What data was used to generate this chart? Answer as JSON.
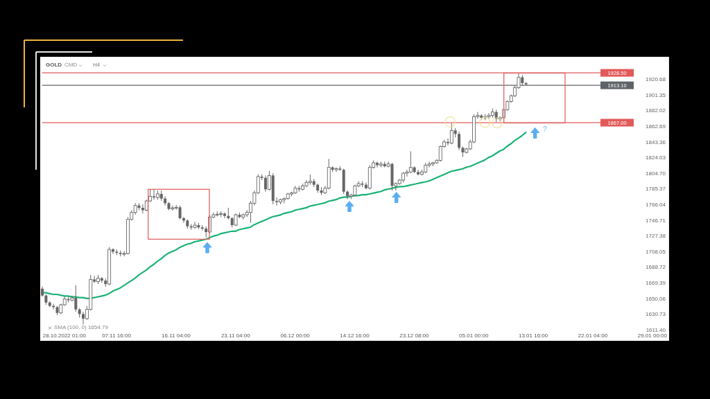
{
  "chart_data": {
    "type": "candlestick",
    "title": "GOLD",
    "annotations": [
      "CMD",
      "H4",
      "SMA (100, 0) 1654.79",
      "?"
    ],
    "categories": [
      null,
      null,
      null,
      null,
      null,
      null,
      "28.10.2022 01:00",
      null,
      null,
      null,
      null,
      null,
      null,
      null,
      null,
      null,
      null,
      null,
      null,
      null,
      "07.11 16:00",
      null,
      null,
      null,
      null,
      null,
      null,
      null,
      null,
      null,
      null,
      null,
      null,
      null,
      null,
      null,
      "16.11 04:00",
      null,
      null,
      null,
      null,
      null,
      null,
      null,
      null,
      null,
      null,
      null,
      null,
      null,
      null,
      null,
      "23.11 04:00",
      null,
      null,
      null,
      null,
      null,
      null,
      null,
      null,
      null,
      null,
      null,
      null,
      null,
      null,
      null,
      "06.12 00:00",
      null,
      null,
      null,
      null,
      null,
      null,
      null,
      null,
      null,
      null,
      null,
      null,
      null,
      null,
      null,
      "14.12 16:00",
      null,
      null,
      null,
      null,
      null,
      null,
      null,
      null,
      null,
      null,
      null,
      null,
      null,
      null,
      null,
      "23.12 08:00",
      null,
      null,
      null,
      null,
      null,
      null,
      null,
      null,
      null,
      null,
      null,
      null,
      null,
      null,
      null,
      "05.01 00:00",
      null,
      null,
      null,
      null,
      null,
      null,
      null,
      null,
      null,
      null,
      null,
      null,
      null,
      null,
      null,
      "13.01 16:00",
      null,
      null,
      null,
      null,
      null,
      null,
      null,
      null,
      null,
      null,
      null,
      null,
      null,
      null,
      null,
      "22.01 04:00",
      null,
      null,
      null,
      null,
      null,
      null,
      null,
      null,
      null,
      null,
      null,
      null,
      null,
      null,
      null,
      "29.01 00:00",
      null,
      null,
      null,
      null
    ],
    "ohlc": [
      [
        1662.1,
        1665.0,
        1652.2,
        1653.6
      ],
      [
        1653.6,
        1655.0,
        1642.2,
        1645.0
      ],
      [
        1645.0,
        1646.5,
        1639.3,
        1640.8
      ],
      [
        1640.8,
        1643.6,
        1636.5,
        1639.3
      ],
      [
        1639.3,
        1640.8,
        1629.4,
        1632.2
      ],
      [
        1632.2,
        1643.6,
        1630.8,
        1642.2
      ],
      [
        1642.2,
        1652.2,
        1640.8,
        1649.3
      ],
      [
        1649.3,
        1652.2,
        1645.0,
        1647.9
      ],
      [
        1647.9,
        1653.6,
        1646.5,
        1650.7
      ],
      [
        1650.7,
        1666.4,
        1633.6,
        1636.5
      ],
      [
        1636.5,
        1637.9,
        1626.5,
        1630.8
      ],
      [
        1630.8,
        1633.6,
        1618.0,
        1625.1
      ],
      [
        1625.1,
        1640.8,
        1623.7,
        1636.5
      ],
      [
        1636.5,
        1679.2,
        1635.1,
        1673.5
      ],
      [
        1673.5,
        1677.8,
        1669.3,
        1670.7
      ],
      [
        1670.7,
        1679.2,
        1667.8,
        1675.0
      ],
      [
        1675.0,
        1676.4,
        1669.3,
        1672.1
      ],
      [
        1672.1,
        1675.0,
        1664.4,
        1667.8
      ],
      [
        1667.8,
        1713.4,
        1666.4,
        1710.6
      ],
      [
        1710.6,
        1712.0,
        1704.9,
        1707.7
      ],
      [
        1707.7,
        1710.6,
        1703.5,
        1706.3
      ],
      [
        1706.3,
        1709.2,
        1702.0,
        1704.9
      ],
      [
        1704.9,
        1708.3,
        1702.0,
        1705.5
      ],
      [
        1705.5,
        1750.5,
        1704.3,
        1747.6
      ],
      [
        1747.6,
        1759.0,
        1746.2,
        1756.2
      ],
      [
        1756.2,
        1767.6,
        1753.3,
        1764.7
      ],
      [
        1764.7,
        1767.6,
        1759.0,
        1761.9
      ],
      [
        1761.9,
        1766.2,
        1754.8,
        1759.0
      ],
      [
        1759.0,
        1771.9,
        1757.6,
        1770.4
      ],
      [
        1770.4,
        1784.1,
        1769.0,
        1776.1
      ],
      [
        1776.1,
        1784.1,
        1771.9,
        1774.7
      ],
      [
        1774.7,
        1783.3,
        1771.9,
        1779.0
      ],
      [
        1779.0,
        1783.3,
        1770.4,
        1773.3
      ],
      [
        1773.3,
        1776.1,
        1764.7,
        1767.6
      ],
      [
        1767.6,
        1769.0,
        1759.0,
        1760.5
      ],
      [
        1760.5,
        1764.7,
        1758.5,
        1761.9
      ],
      [
        1761.9,
        1765.3,
        1759.6,
        1762.5
      ],
      [
        1762.5,
        1764.7,
        1747.6,
        1749.1
      ],
      [
        1749.1,
        1750.5,
        1743.4,
        1746.2
      ],
      [
        1746.2,
        1747.6,
        1736.2,
        1739.1
      ],
      [
        1739.1,
        1741.9,
        1734.8,
        1737.7
      ],
      [
        1737.7,
        1744.8,
        1736.2,
        1740.5
      ],
      [
        1740.5,
        1743.4,
        1735.7,
        1737.7
      ],
      [
        1737.7,
        1740.5,
        1734.0,
        1736.2
      ],
      [
        1736.2,
        1739.1,
        1725.4,
        1732.0
      ],
      [
        1732.0,
        1753.3,
        1730.5,
        1750.5
      ],
      [
        1750.5,
        1756.2,
        1749.1,
        1753.3
      ],
      [
        1753.3,
        1757.6,
        1751.1,
        1753.9
      ],
      [
        1753.9,
        1757.6,
        1750.5,
        1754.8
      ],
      [
        1754.8,
        1756.2,
        1749.1,
        1751.9
      ],
      [
        1751.9,
        1761.9,
        1747.6,
        1749.1
      ],
      [
        1749.1,
        1750.5,
        1737.7,
        1740.5
      ],
      [
        1740.5,
        1754.8,
        1739.1,
        1753.3
      ],
      [
        1753.3,
        1756.2,
        1749.1,
        1750.5
      ],
      [
        1750.5,
        1754.8,
        1747.6,
        1753.3
      ],
      [
        1753.3,
        1759.0,
        1750.5,
        1756.2
      ],
      [
        1756.2,
        1770.4,
        1743.4,
        1767.6
      ],
      [
        1767.6,
        1783.3,
        1764.7,
        1780.4
      ],
      [
        1780.4,
        1803.2,
        1779.0,
        1800.4
      ],
      [
        1800.4,
        1803.2,
        1796.1,
        1798.9
      ],
      [
        1798.9,
        1801.8,
        1781.8,
        1784.7
      ],
      [
        1784.7,
        1807.5,
        1783.3,
        1801.8
      ],
      [
        1801.8,
        1804.6,
        1766.2,
        1770.4
      ],
      [
        1770.4,
        1774.7,
        1764.7,
        1769.0
      ],
      [
        1769.0,
        1773.3,
        1766.2,
        1771.9
      ],
      [
        1771.9,
        1774.7,
        1767.6,
        1773.3
      ],
      [
        1773.3,
        1780.4,
        1771.9,
        1779.0
      ],
      [
        1779.0,
        1781.8,
        1776.1,
        1780.4
      ],
      [
        1780.4,
        1789.0,
        1779.0,
        1786.1
      ],
      [
        1786.1,
        1789.0,
        1781.8,
        1784.7
      ],
      [
        1784.7,
        1791.8,
        1783.3,
        1789.0
      ],
      [
        1789.0,
        1796.1,
        1787.5,
        1793.2
      ],
      [
        1793.2,
        1803.2,
        1790.4,
        1794.7
      ],
      [
        1794.7,
        1797.5,
        1787.5,
        1790.4
      ],
      [
        1790.4,
        1791.8,
        1780.4,
        1783.3
      ],
      [
        1783.3,
        1787.5,
        1777.6,
        1780.4
      ],
      [
        1780.4,
        1789.0,
        1779.0,
        1786.1
      ],
      [
        1786.1,
        1822.3,
        1784.7,
        1811.8
      ],
      [
        1811.8,
        1813.2,
        1806.1,
        1808.9
      ],
      [
        1808.9,
        1811.8,
        1806.1,
        1810.3
      ],
      [
        1810.3,
        1813.2,
        1807.5,
        1808.9
      ],
      [
        1808.9,
        1810.3,
        1779.0,
        1781.8
      ],
      [
        1781.8,
        1783.3,
        1772.7,
        1776.1
      ],
      [
        1776.1,
        1779.0,
        1772.7,
        1777.6
      ],
      [
        1777.6,
        1790.4,
        1776.1,
        1789.0
      ],
      [
        1789.0,
        1794.7,
        1787.5,
        1791.8
      ],
      [
        1791.8,
        1794.7,
        1787.5,
        1790.4
      ],
      [
        1790.4,
        1793.2,
        1784.7,
        1786.1
      ],
      [
        1786.1,
        1814.6,
        1784.7,
        1811.8
      ],
      [
        1811.8,
        1820.3,
        1810.3,
        1817.5
      ],
      [
        1817.5,
        1818.9,
        1811.8,
        1814.6
      ],
      [
        1814.6,
        1818.9,
        1811.8,
        1816.0
      ],
      [
        1816.0,
        1818.9,
        1811.8,
        1813.2
      ],
      [
        1813.2,
        1818.9,
        1811.8,
        1816.0
      ],
      [
        1816.0,
        1817.5,
        1783.3,
        1789.0
      ],
      [
        1789.0,
        1793.2,
        1783.3,
        1791.8
      ],
      [
        1791.8,
        1797.5,
        1790.4,
        1796.1
      ],
      [
        1796.1,
        1806.1,
        1793.2,
        1804.6
      ],
      [
        1804.6,
        1808.9,
        1800.4,
        1806.1
      ],
      [
        1806.1,
        1831.7,
        1804.6,
        1811.8
      ],
      [
        1811.8,
        1813.2,
        1804.6,
        1806.1
      ],
      [
        1806.1,
        1808.9,
        1801.8,
        1803.2
      ],
      [
        1803.2,
        1808.9,
        1801.8,
        1806.1
      ],
      [
        1806.1,
        1817.5,
        1804.6,
        1814.6
      ],
      [
        1814.6,
        1818.9,
        1811.8,
        1816.0
      ],
      [
        1816.0,
        1818.9,
        1813.2,
        1817.5
      ],
      [
        1817.5,
        1821.8,
        1816.1,
        1820.4
      ],
      [
        1820.4,
        1838.9,
        1818.9,
        1837.5
      ],
      [
        1837.5,
        1846.0,
        1836.0,
        1843.2
      ],
      [
        1843.2,
        1847.4,
        1838.9,
        1841.7
      ],
      [
        1841.7,
        1866.0,
        1840.3,
        1857.4
      ],
      [
        1857.4,
        1860.3,
        1848.8,
        1853.1
      ],
      [
        1853.1,
        1856.0,
        1833.2,
        1836.0
      ],
      [
        1836.0,
        1837.5,
        1824.6,
        1830.3
      ],
      [
        1830.3,
        1836.0,
        1828.9,
        1834.6
      ],
      [
        1834.6,
        1846.0,
        1833.2,
        1843.2
      ],
      [
        1843.2,
        1877.4,
        1841.7,
        1874.5
      ],
      [
        1874.5,
        1880.2,
        1871.7,
        1875.9
      ],
      [
        1875.9,
        1877.4,
        1870.2,
        1873.1
      ],
      [
        1873.1,
        1877.4,
        1870.2,
        1874.5
      ],
      [
        1874.5,
        1878.8,
        1871.7,
        1875.9
      ],
      [
        1875.9,
        1884.5,
        1873.1,
        1880.2
      ],
      [
        1880.2,
        1883.1,
        1868.0,
        1871.7
      ],
      [
        1871.7,
        1874.5,
        1868.8,
        1873.1
      ],
      [
        1873.1,
        1884.5,
        1871.7,
        1883.1
      ],
      [
        1883.1,
        1894.5,
        1881.6,
        1893.0
      ],
      [
        1893.0,
        1901.6,
        1891.6,
        1900.2
      ],
      [
        1900.2,
        1913.0,
        1898.7,
        1910.1
      ],
      [
        1910.1,
        1928.1,
        1908.7,
        1923.0
      ],
      [
        1923.0,
        1925.8,
        1913.0,
        1915.8
      ],
      [
        1915.8,
        1917.3,
        1913.0,
        1914.4
      ],
      null,
      null,
      null,
      null,
      null,
      null,
      null,
      null,
      null,
      null,
      null,
      null,
      null,
      null,
      null,
      null,
      null,
      null,
      null,
      null,
      null,
      null,
      null,
      null,
      null,
      null,
      null,
      null,
      null,
      null,
      null,
      null,
      null,
      null,
      null,
      null,
      null,
      null
    ],
    "color": "#666666",
    "series": [
      {
        "type": "line",
        "color": "#19b374",
        "values": [
          1657,
          1657,
          1656,
          1655,
          1655,
          1654,
          1653,
          1653,
          1652,
          1652,
          1651,
          1651,
          1650,
          1650,
          1651,
          1652,
          1653,
          1654,
          1656,
          1659,
          1661,
          1663,
          1666,
          1669,
          1672,
          1675,
          1679,
          1682,
          1685,
          1689,
          1692,
          1696,
          1699,
          1703,
          1706,
          1708,
          1710,
          1713,
          1715,
          1717,
          1718,
          1720,
          1721,
          1722,
          1723,
          1725,
          1727,
          1728,
          1730,
          1731,
          1732,
          1733,
          1733,
          1735,
          1736,
          1737,
          1738,
          1741,
          1743,
          1745,
          1747,
          1749,
          1751,
          1752,
          1753,
          1755,
          1756,
          1757,
          1759,
          1760,
          1761,
          1762,
          1764,
          1765,
          1766,
          1767,
          1768,
          1770,
          1771,
          1772,
          1774,
          1775,
          1775,
          1776,
          1777,
          1777,
          1778,
          1778,
          1779,
          1780,
          1781,
          1782,
          1784,
          1785,
          1786,
          1787,
          1788,
          1788,
          1789,
          1790,
          1791,
          1792,
          1793,
          1794,
          1795,
          1797,
          1799,
          1801,
          1803,
          1805,
          1807,
          1808,
          1809,
          1810,
          1812,
          1813,
          1815,
          1817,
          1819,
          1821,
          1824,
          1826,
          1829,
          1832,
          1834,
          1838,
          1841,
          1845,
          1848,
          1851,
          1855,
          null,
          null,
          null,
          null,
          null,
          null,
          null,
          null,
          null,
          null,
          null,
          null,
          null,
          null,
          null,
          null,
          null,
          null,
          null,
          null,
          null,
          null,
          null,
          null,
          null,
          null,
          null,
          null,
          null,
          null,
          null,
          null,
          null,
          null,
          null,
          null,
          null,
          null
        ]
      }
    ],
    "ylim": [
      1609.7,
      1948.3
    ],
    "yticks": [
      {
        "value": 1611.4,
        "label": "1611.40"
      },
      1630.73,
      1650.06,
      1669.39,
      1688.72,
      1708.05,
      1727.38,
      1746.71,
      1766.04,
      1785.37,
      {
        "value": 1804.7,
        "label": "1804.70"
      },
      1824.03,
      1843.36,
      1862.69,
      1882.02,
      1901.35,
      1920.68
    ],
    "ref_lines": [
      {
        "axis": "y",
        "value": 1928.5,
        "label": "1928.50",
        "color": "#e25a5a"
      },
      {
        "axis": "y",
        "value": 1913.1,
        "label": "1913.10",
        "color": "#5f6368"
      },
      {
        "axis": "y",
        "value": 1867,
        "label": "1867.00",
        "color": "#e25a5a"
      }
    ]
  }
}
